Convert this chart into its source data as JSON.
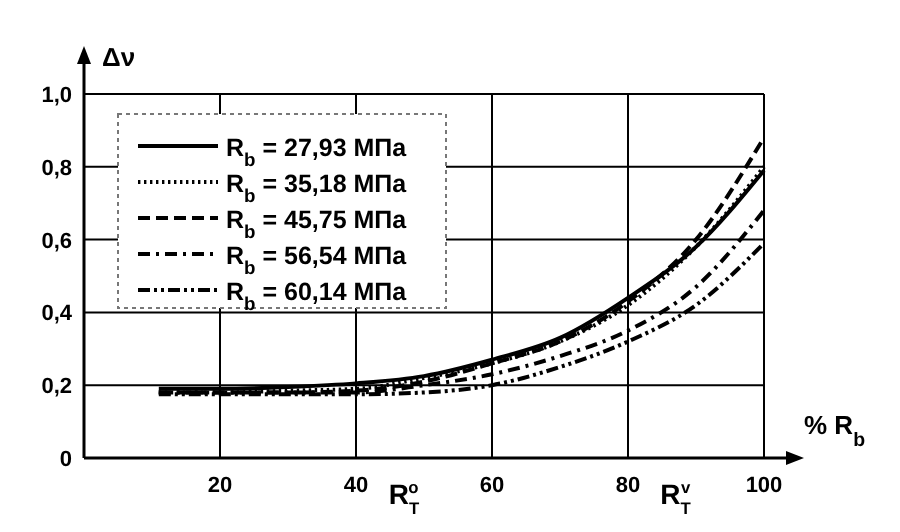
{
  "chart_data": {
    "type": "line",
    "xlabel": "% R$_{b}$",
    "ylabel": "Δν",
    "xlim": [
      0,
      100
    ],
    "ylim": [
      0,
      1
    ],
    "xticks": [
      20,
      40,
      60,
      80,
      100
    ],
    "yticks": [
      0,
      {
        "value": 0.2,
        "label": "0,2"
      },
      {
        "value": 0.4,
        "label": "0,4"
      },
      {
        "value": 0.6,
        "label": "0,6"
      },
      {
        "value": 0.8,
        "label": "0,8"
      },
      {
        "value": 1,
        "label": "1,0"
      }
    ],
    "grid": true,
    "legend": "top left",
    "marker": "none",
    "x": [
      11,
      20,
      30,
      40,
      50,
      60,
      70,
      80,
      90,
      100
    ],
    "series": [
      {
        "name": "R$_{b}$ = 27,93 МПа",
        "color": "#000000",
        "line_style": "solid",
        "values": [
          0.19,
          0.19,
          0.195,
          0.205,
          0.225,
          0.27,
          0.33,
          0.44,
          0.58,
          0.79
        ]
      },
      {
        "name": "R$_{b}$ = 35,18 МПа",
        "color": "#000000",
        "line_style": "dotted",
        "values": [
          0.18,
          0.18,
          0.185,
          0.19,
          0.22,
          0.26,
          0.32,
          0.42,
          0.58,
          0.8
        ]
      },
      {
        "name": "R$_{b}$ = 45,75 МПа",
        "color": "#000000",
        "line_style": "dashed",
        "values": [
          0.18,
          0.18,
          0.18,
          0.185,
          0.21,
          0.26,
          0.32,
          0.43,
          0.6,
          0.88
        ]
      },
      {
        "name": "R$_{b}$ = 56,54 МПа",
        "color": "#000000",
        "line_style": "dashdot",
        "values": [
          0.18,
          0.18,
          0.18,
          0.18,
          0.2,
          0.23,
          0.28,
          0.35,
          0.47,
          0.68
        ]
      },
      {
        "name": "R$_{b}$ = 60,14 МПа",
        "color": "#000000",
        "line_style": "dashdotdot",
        "values": [
          0.175,
          0.175,
          0.175,
          0.175,
          0.18,
          0.2,
          0.25,
          0.32,
          0.42,
          0.59
        ]
      }
    ],
    "annotations": [
      "R$_{T}$$^{o}$",
      "R$_{T}$$^{v}$"
    ]
  }
}
